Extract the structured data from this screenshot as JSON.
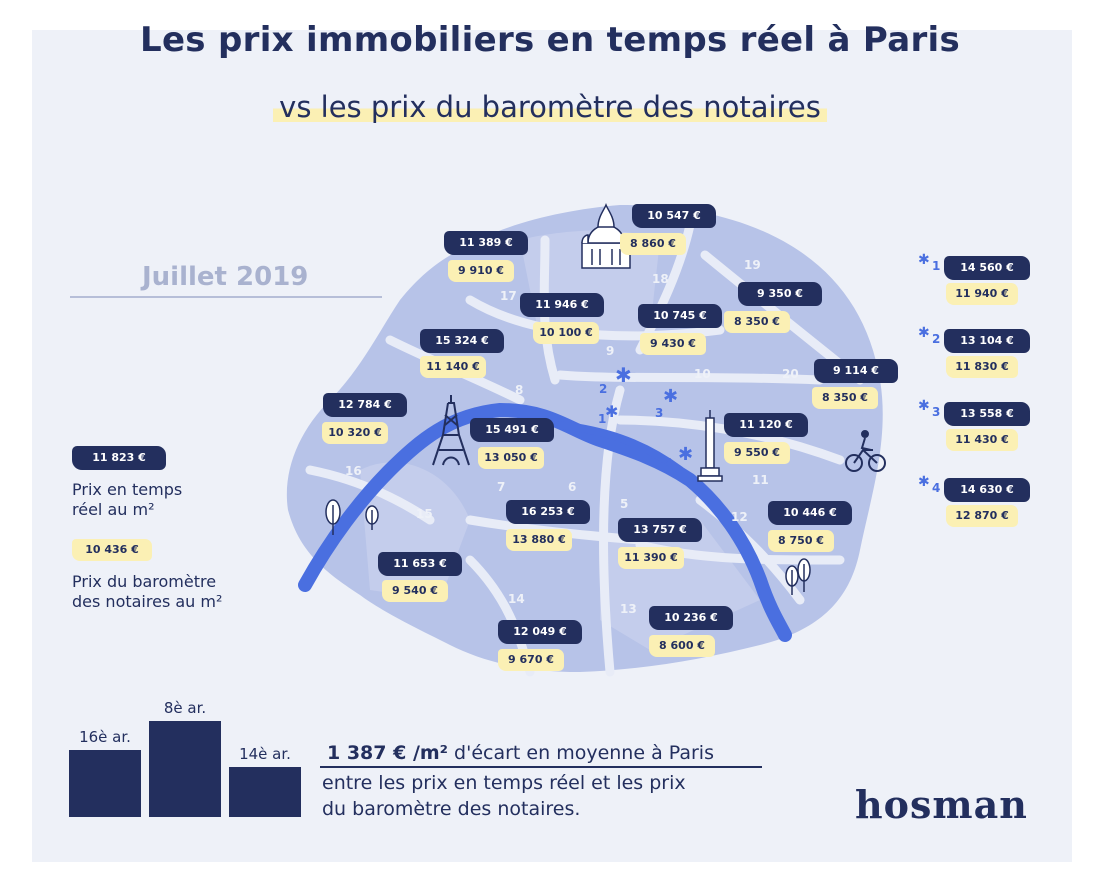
{
  "header": {
    "title": "Les prix immobiliers en temps réel à Paris",
    "subtitle": "vs les prix du baromètre des notaires"
  },
  "date": "Juillet 2019",
  "colors": {
    "dark_navy": "#232f5e",
    "highlight_yellow": "#fbf0b4",
    "seine_blue": "#4a6fe0",
    "map_fill": "#b7c3e8",
    "background": "#eef1f8"
  },
  "legend": {
    "realtime_example": "11 823 €",
    "realtime_label_line1": "Prix en temps",
    "realtime_label_line2": "réel au m²",
    "notaires_example": "10 436 €",
    "notaires_label_line1": "Prix du baromètre",
    "notaires_label_line2": "des notaires au m²"
  },
  "map": {
    "arrondissement_numbers": [
      "1",
      "2",
      "3",
      "4",
      "5",
      "6",
      "7",
      "8",
      "9",
      "10",
      "11",
      "12",
      "13",
      "14",
      "15",
      "16",
      "17",
      "18",
      "19",
      "20"
    ],
    "landmarks": [
      "sacre-coeur-icon",
      "eiffel-tower-icon",
      "bastille-column-icon",
      "cyclist-icon",
      "tree-icon"
    ],
    "prices": [
      {
        "arr": "18",
        "realtime": "10 547 €",
        "notaires": "8 860 €"
      },
      {
        "arr": "17",
        "realtime": "11 389 €",
        "notaires": "9 910 €"
      },
      {
        "arr": "9",
        "realtime": "11 946 €",
        "notaires": "10 100 €"
      },
      {
        "arr": "10",
        "realtime": "10 745 €",
        "notaires": "9 430 €"
      },
      {
        "arr": "19",
        "realtime": "9 350 €",
        "notaires": "8 350 €"
      },
      {
        "arr": "8",
        "realtime": "15 324 €",
        "notaires": "11 140 €"
      },
      {
        "arr": "20",
        "realtime": "9 114 €",
        "notaires": "8 350 €"
      },
      {
        "arr": "16",
        "realtime": "12 784 €",
        "notaires": "10 320 €"
      },
      {
        "arr": "7",
        "realtime": "15 491 €",
        "notaires": "13 050 €"
      },
      {
        "arr": "11",
        "realtime": "11 120 €",
        "notaires": "9 550 €"
      },
      {
        "arr": "6",
        "realtime": "16 253 €",
        "notaires": "13 880 €"
      },
      {
        "arr": "5",
        "realtime": "13 757 €",
        "notaires": "11 390 €"
      },
      {
        "arr": "12",
        "realtime": "10 446 €",
        "notaires": "8 750 €"
      },
      {
        "arr": "15",
        "realtime": "11 653 €",
        "notaires": "9 540 €"
      },
      {
        "arr": "14",
        "realtime": "12 049 €",
        "notaires": "9 670 €"
      },
      {
        "arr": "13",
        "realtime": "10 236 €",
        "notaires": "8 600 €"
      }
    ],
    "central": [
      {
        "arr": "1",
        "realtime": "14 560 €",
        "notaires": "11 940 €"
      },
      {
        "arr": "2",
        "realtime": "13 104 €",
        "notaires": "11 830 €"
      },
      {
        "arr": "3",
        "realtime": "13 558 €",
        "notaires": "11 430 €"
      },
      {
        "arr": "4",
        "realtime": "14 630 €",
        "notaires": "12 870 €"
      }
    ]
  },
  "chart_data": {
    "type": "bar",
    "categories": [
      "16è ar.",
      "8è ar.",
      "14è ar."
    ],
    "values": [
      67,
      96,
      50
    ],
    "title": "",
    "xlabel": "",
    "ylabel": ""
  },
  "stat": {
    "headline_bold": "1 387 € /m²",
    "headline_rest": " d'écart en moyenne à Paris",
    "line1": "entre les prix en temps réel et les prix",
    "line2": "du baromètre des notaires."
  },
  "logo": "hosman"
}
